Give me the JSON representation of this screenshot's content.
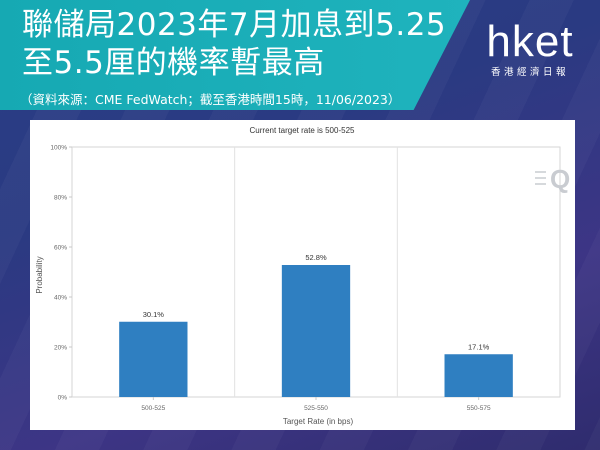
{
  "header": {
    "title": "聯儲局2023年7月加息到5.25至5.5厘的機率暫最高",
    "source": "（資料來源：CME FedWatch；截至香港時間15時，11/06/2023）"
  },
  "logo": {
    "word": "hket",
    "subtitle": "香港經濟日報"
  },
  "chart_data": {
    "type": "bar",
    "title": "Current target rate is 500-525",
    "xlabel": "Target Rate (in bps)",
    "ylabel": "Probability",
    "categories": [
      "500-525",
      "525-550",
      "550-575"
    ],
    "values": [
      30.1,
      52.8,
      17.1
    ],
    "value_labels": [
      "30.1%",
      "52.8%",
      "17.1%"
    ],
    "ylim": [
      0,
      100
    ],
    "yticks": [
      0,
      20,
      40,
      60,
      80,
      100
    ],
    "ytick_labels": [
      "0%",
      "20%",
      "40%",
      "60%",
      "80%",
      "100%"
    ],
    "grid": "vertical",
    "bar_color": "#2f7fc1"
  }
}
